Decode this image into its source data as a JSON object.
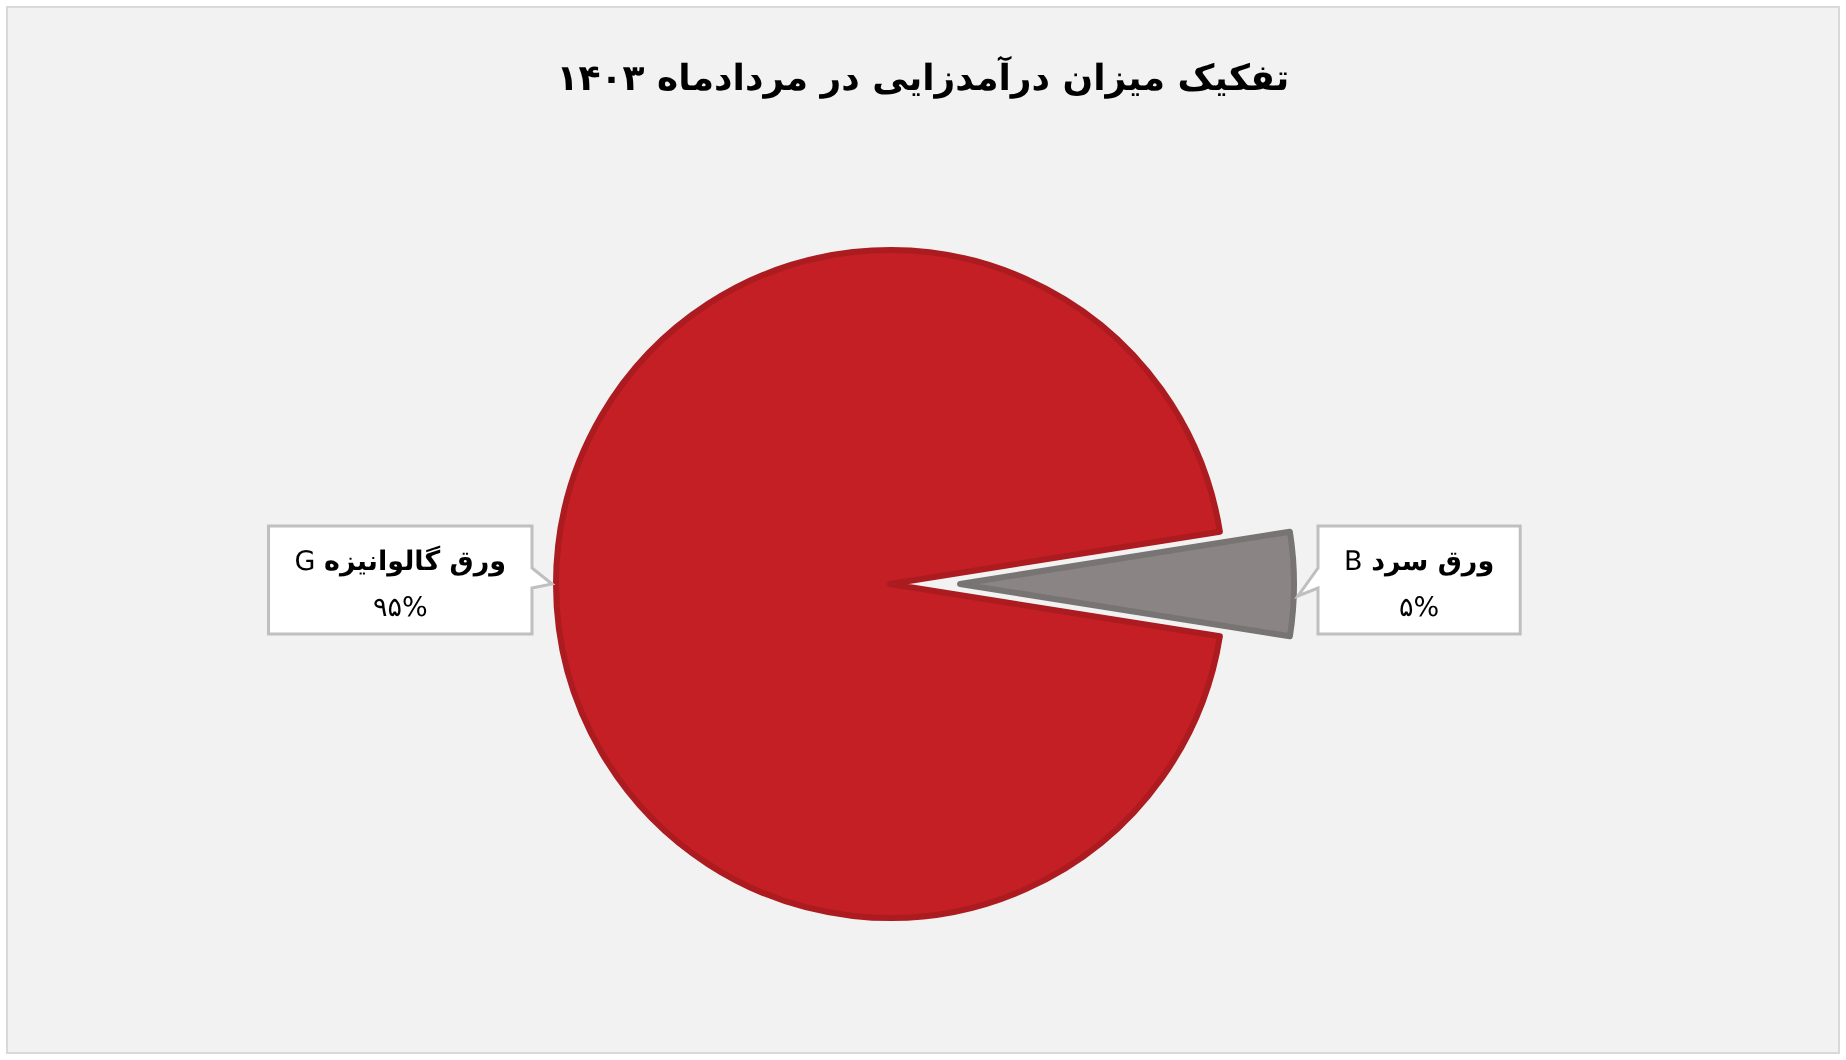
{
  "chart_data": {
    "type": "pie",
    "title": "تفکیک میزان درآمدزایی در مردادماه ۱۴۰۳",
    "categories": [
      "**ورق گالوانیزه** G",
      "**ورق سرد** B"
    ],
    "values": [
      95,
      5
    ],
    "colors": [
      "#c41f24",
      "#8a8484"
    ],
    "value_labels": [
      "۹۵%",
      "۵%"
    ]
  }
}
